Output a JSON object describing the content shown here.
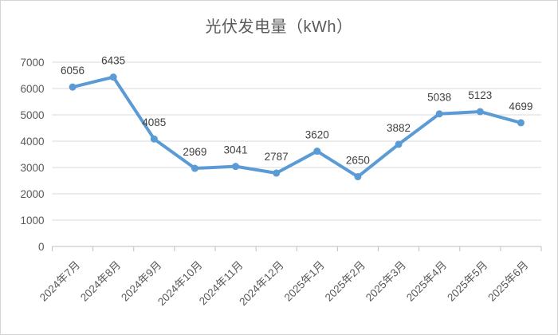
{
  "chart": {
    "title": "光伏发电量（kWh）"
  },
  "chart_data": {
    "type": "line",
    "title": "光伏发电量（kWh）",
    "categories": [
      "2024年7月",
      "2024年8月",
      "2024年9月",
      "2024年10月",
      "2024年11月",
      "2024年12月",
      "2025年1月",
      "2025年2月",
      "2025年3月",
      "2025年4月",
      "2025年5月",
      "2025年6月"
    ],
    "values": [
      6056,
      6435,
      4085,
      2969,
      3041,
      2787,
      3620,
      2650,
      3882,
      5038,
      5123,
      4699
    ],
    "xlabel": "",
    "ylabel": "",
    "ylim": [
      0,
      7000
    ],
    "ytick_step": 1000,
    "yticks": [
      "0",
      "1000",
      "2000",
      "3000",
      "4000",
      "5000",
      "6000",
      "7000"
    ],
    "grid": true,
    "legend": "none",
    "data_labels": true,
    "x_label_rotation_deg": -45,
    "colors": {
      "line": "#5B9BD5",
      "marker": "#5B9BD5",
      "gridline": "#D9D9D9",
      "axis_line": "#BFBFBF",
      "axis_text": "#595959",
      "data_label_text": "#404040",
      "title_text": "#595959",
      "frame_border": "#D4D4D4",
      "background": "#FFFFFF"
    }
  }
}
